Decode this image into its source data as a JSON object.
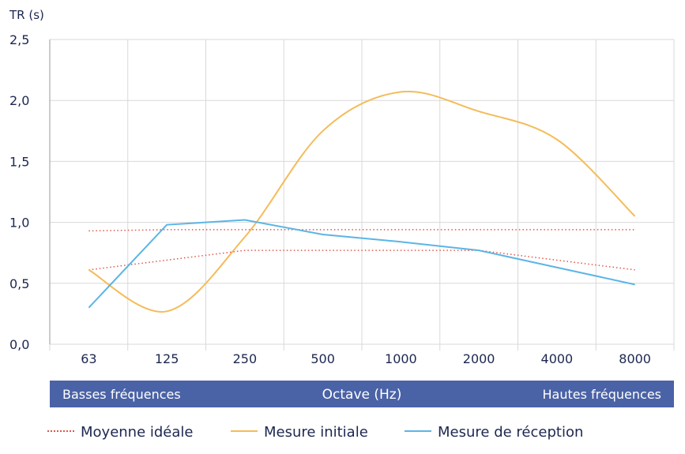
{
  "chart_data": {
    "type": "line",
    "ylabel": "TR (s)",
    "xlabel": "Octave (Hz)",
    "categories": [
      "63",
      "125",
      "250",
      "500",
      "1000",
      "2000",
      "4000",
      "8000"
    ],
    "ytick_labels": [
      "0,0",
      "0,5",
      "1,0",
      "1,5",
      "2,0",
      "2,5"
    ],
    "ylim": [
      0,
      2.5
    ],
    "grid": true,
    "band_left_label": "Basses fréquences",
    "band_right_label": "Hautes fréquences",
    "legend_position": "bottom",
    "series": [
      {
        "name": "Moyenne idéale",
        "style": "dotted",
        "color": "#e0564a",
        "upper": [
          0.93,
          0.94,
          0.94,
          0.94,
          0.94,
          0.94,
          0.94,
          0.94
        ],
        "lower": [
          0.61,
          0.69,
          0.77,
          0.77,
          0.77,
          0.77,
          0.69,
          0.61
        ]
      },
      {
        "name": "Mesure initiale",
        "style": "solid",
        "color": "#f4bc5a",
        "values": [
          0.61,
          0.27,
          0.88,
          1.75,
          2.07,
          1.91,
          1.68,
          1.05
        ]
      },
      {
        "name": "Mesure de réception",
        "style": "solid",
        "color": "#5bb5e6",
        "values": [
          0.3,
          0.98,
          1.02,
          0.9,
          0.84,
          0.77,
          0.63,
          0.49
        ]
      }
    ]
  },
  "colors": {
    "band": "#4a62a6",
    "axis_text": "#1d2750",
    "grid": "#d9d9d9"
  }
}
